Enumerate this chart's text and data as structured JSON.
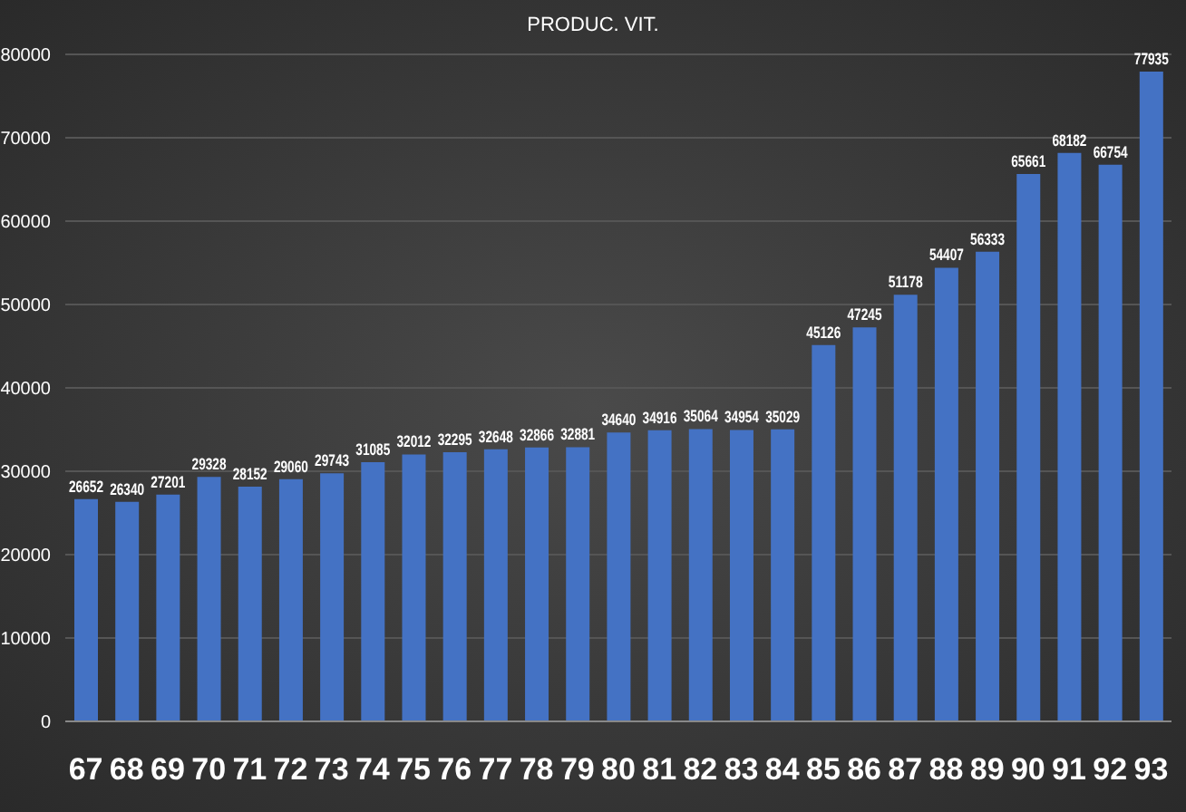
{
  "chart_data": {
    "type": "bar",
    "title": "PRODUC. VIT.",
    "categories": [
      "67",
      "68",
      "69",
      "70",
      "71",
      "72",
      "73",
      "74",
      "75",
      "76",
      "77",
      "78",
      "79",
      "80",
      "81",
      "82",
      "83",
      "84",
      "85",
      "86",
      "87",
      "88",
      "89",
      "90",
      "91",
      "92",
      "93"
    ],
    "values": [
      26652,
      26340,
      27201,
      29328,
      28152,
      29060,
      29743,
      31085,
      32012,
      32295,
      32648,
      32866,
      32881,
      34640,
      34916,
      35064,
      34954,
      35029,
      45126,
      47245,
      51178,
      54407,
      56333,
      65661,
      68182,
      66754,
      77935
    ],
    "color": "#4472c4",
    "ylim": [
      0,
      80000
    ],
    "yticks": [
      0,
      10000,
      20000,
      30000,
      40000,
      50000,
      60000,
      70000,
      80000
    ],
    "grid": "y",
    "data_labels": true
  }
}
